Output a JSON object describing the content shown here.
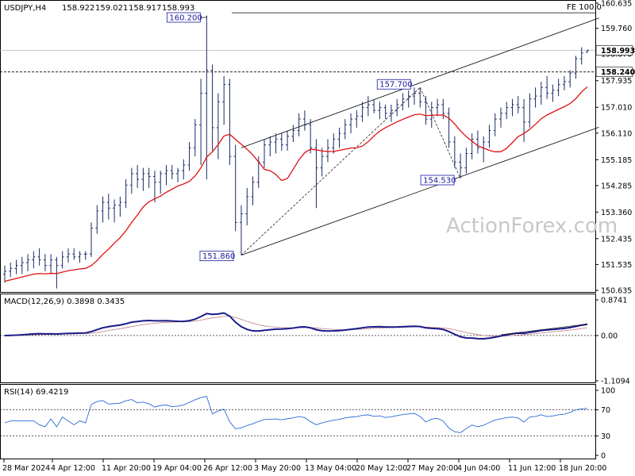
{
  "chart_data": {
    "type": "line",
    "symbol": "USDJPY,H4",
    "ohlc": {
      "open": "158.922",
      "high": "159.021",
      "low": "158.917",
      "close": "158.993"
    },
    "watermark": "ActionForex.com",
    "price_axis": {
      "ticks": [
        "160.635",
        "159.760",
        "158.870",
        "157.935",
        "157.010",
        "156.110",
        "155.185",
        "154.285",
        "153.360",
        "152.435",
        "151.535",
        "150.635"
      ],
      "ylim": [
        150.635,
        160.635
      ]
    },
    "x_labels": [
      "28 Mar 2024",
      "4 Apr 12:00",
      "11 Apr 20:00",
      "19 Apr 04:00",
      "26 Apr 12:00",
      "3 May 20:00",
      "13 May 04:00",
      "20 May 12:00",
      "27 May 20:00",
      "4 Jun 04:00",
      "11 Jun 12:00",
      "18 Jun 20:00"
    ],
    "price_callouts": [
      {
        "label": "160.200",
        "bar": 35,
        "price": 160.2
      },
      {
        "label": "151.860",
        "bar": 41,
        "price": 151.86
      },
      {
        "label": "157.700",
        "bar": 72,
        "price": 157.7
      },
      {
        "label": "154.530",
        "bar": 79,
        "price": 154.53
      }
    ],
    "price_tags": [
      {
        "label": "158.993",
        "price": 158.993
      },
      {
        "label": "158.240",
        "price": 158.24
      }
    ],
    "fe_label": "FE 100.0",
    "fe_price": 160.3,
    "horizontal_level": 158.24,
    "channel": {
      "lower": [
        {
          "bar": 41,
          "price": 151.86
        },
        {
          "bar": 100,
          "price": 156.1
        }
      ],
      "upper": [
        {
          "bar": 41,
          "price": 155.6
        },
        {
          "bar": 100,
          "price": 159.9
        }
      ]
    },
    "candles": [
      {
        "o": 151.2,
        "h": 151.5,
        "l": 150.9,
        "c": 151.3
      },
      {
        "o": 151.3,
        "h": 151.6,
        "l": 151.1,
        "c": 151.4
      },
      {
        "o": 151.4,
        "h": 151.7,
        "l": 151.2,
        "c": 151.5
      },
      {
        "o": 151.5,
        "h": 151.8,
        "l": 151.2,
        "c": 151.6
      },
      {
        "o": 151.6,
        "h": 151.9,
        "l": 151.3,
        "c": 151.7
      },
      {
        "o": 151.7,
        "h": 152.0,
        "l": 151.4,
        "c": 151.8
      },
      {
        "o": 151.8,
        "h": 152.1,
        "l": 151.5,
        "c": 151.7
      },
      {
        "o": 151.7,
        "h": 151.9,
        "l": 151.3,
        "c": 151.5
      },
      {
        "o": 151.5,
        "h": 151.9,
        "l": 151.2,
        "c": 151.7
      },
      {
        "o": 151.7,
        "h": 151.8,
        "l": 150.7,
        "c": 151.5
      },
      {
        "o": 151.5,
        "h": 152.0,
        "l": 151.4,
        "c": 151.8
      },
      {
        "o": 151.8,
        "h": 152.1,
        "l": 151.6,
        "c": 151.9
      },
      {
        "o": 151.9,
        "h": 152.1,
        "l": 151.7,
        "c": 151.8
      },
      {
        "o": 151.8,
        "h": 152.0,
        "l": 151.6,
        "c": 151.9
      },
      {
        "o": 151.9,
        "h": 152.0,
        "l": 151.7,
        "c": 151.9
      },
      {
        "o": 151.9,
        "h": 153.0,
        "l": 151.8,
        "c": 152.8
      },
      {
        "o": 152.8,
        "h": 153.6,
        "l": 152.6,
        "c": 153.4
      },
      {
        "o": 153.4,
        "h": 153.9,
        "l": 153.0,
        "c": 153.7
      },
      {
        "o": 153.7,
        "h": 154.0,
        "l": 153.1,
        "c": 153.5
      },
      {
        "o": 153.5,
        "h": 153.8,
        "l": 153.0,
        "c": 153.6
      },
      {
        "o": 153.6,
        "h": 153.9,
        "l": 153.2,
        "c": 153.7
      },
      {
        "o": 153.7,
        "h": 154.5,
        "l": 153.5,
        "c": 154.3
      },
      {
        "o": 154.3,
        "h": 154.9,
        "l": 154.0,
        "c": 154.7
      },
      {
        "o": 154.7,
        "h": 155.0,
        "l": 154.2,
        "c": 154.5
      },
      {
        "o": 154.5,
        "h": 154.9,
        "l": 154.1,
        "c": 154.7
      },
      {
        "o": 154.7,
        "h": 154.9,
        "l": 154.2,
        "c": 154.6
      },
      {
        "o": 154.6,
        "h": 154.8,
        "l": 153.7,
        "c": 154.4
      },
      {
        "o": 154.4,
        "h": 154.8,
        "l": 154.0,
        "c": 154.7
      },
      {
        "o": 154.7,
        "h": 155.0,
        "l": 154.3,
        "c": 154.8
      },
      {
        "o": 154.8,
        "h": 155.0,
        "l": 154.5,
        "c": 154.7
      },
      {
        "o": 154.7,
        "h": 154.9,
        "l": 154.4,
        "c": 154.8
      },
      {
        "o": 154.8,
        "h": 155.2,
        "l": 154.5,
        "c": 155.0
      },
      {
        "o": 155.0,
        "h": 155.8,
        "l": 154.8,
        "c": 155.6
      },
      {
        "o": 155.6,
        "h": 156.6,
        "l": 155.3,
        "c": 156.4
      },
      {
        "o": 156.4,
        "h": 158.0,
        "l": 155.0,
        "c": 157.5
      },
      {
        "o": 157.5,
        "h": 160.2,
        "l": 154.5,
        "c": 158.3
      },
      {
        "o": 158.3,
        "h": 158.5,
        "l": 155.5,
        "c": 156.3
      },
      {
        "o": 156.3,
        "h": 157.5,
        "l": 155.2,
        "c": 157.2
      },
      {
        "o": 157.2,
        "h": 158.1,
        "l": 156.4,
        "c": 157.8
      },
      {
        "o": 157.8,
        "h": 158.0,
        "l": 155.0,
        "c": 155.3
      },
      {
        "o": 155.3,
        "h": 155.7,
        "l": 152.7,
        "c": 153.0
      },
      {
        "o": 153.0,
        "h": 153.6,
        "l": 151.86,
        "c": 153.3
      },
      {
        "o": 153.3,
        "h": 154.2,
        "l": 152.9,
        "c": 153.9
      },
      {
        "o": 153.9,
        "h": 154.6,
        "l": 153.6,
        "c": 154.4
      },
      {
        "o": 154.4,
        "h": 155.3,
        "l": 154.2,
        "c": 155.1
      },
      {
        "o": 155.1,
        "h": 155.9,
        "l": 154.9,
        "c": 155.7
      },
      {
        "o": 155.7,
        "h": 156.0,
        "l": 155.3,
        "c": 155.8
      },
      {
        "o": 155.8,
        "h": 156.1,
        "l": 155.4,
        "c": 155.9
      },
      {
        "o": 155.9,
        "h": 156.1,
        "l": 155.5,
        "c": 155.7
      },
      {
        "o": 155.7,
        "h": 156.2,
        "l": 155.5,
        "c": 156.0
      },
      {
        "o": 156.0,
        "h": 156.4,
        "l": 155.8,
        "c": 156.2
      },
      {
        "o": 156.2,
        "h": 156.8,
        "l": 156.0,
        "c": 156.6
      },
      {
        "o": 156.6,
        "h": 156.9,
        "l": 156.2,
        "c": 156.4
      },
      {
        "o": 156.4,
        "h": 156.6,
        "l": 155.4,
        "c": 155.6
      },
      {
        "o": 155.6,
        "h": 155.9,
        "l": 153.5,
        "c": 154.9
      },
      {
        "o": 154.9,
        "h": 155.6,
        "l": 154.6,
        "c": 155.3
      },
      {
        "o": 155.3,
        "h": 155.9,
        "l": 155.1,
        "c": 155.6
      },
      {
        "o": 155.6,
        "h": 156.1,
        "l": 155.4,
        "c": 155.9
      },
      {
        "o": 155.9,
        "h": 156.3,
        "l": 155.6,
        "c": 156.1
      },
      {
        "o": 156.1,
        "h": 156.6,
        "l": 155.9,
        "c": 156.4
      },
      {
        "o": 156.4,
        "h": 156.8,
        "l": 156.1,
        "c": 156.6
      },
      {
        "o": 156.6,
        "h": 156.9,
        "l": 156.3,
        "c": 156.7
      },
      {
        "o": 156.7,
        "h": 157.2,
        "l": 156.5,
        "c": 157.0
      },
      {
        "o": 157.0,
        "h": 157.4,
        "l": 156.7,
        "c": 157.1
      },
      {
        "o": 157.1,
        "h": 157.3,
        "l": 156.8,
        "c": 156.9
      },
      {
        "o": 156.9,
        "h": 157.2,
        "l": 156.6,
        "c": 157.0
      },
      {
        "o": 157.0,
        "h": 157.1,
        "l": 156.6,
        "c": 156.8
      },
      {
        "o": 156.8,
        "h": 157.1,
        "l": 156.5,
        "c": 156.9
      },
      {
        "o": 156.9,
        "h": 157.3,
        "l": 156.7,
        "c": 157.1
      },
      {
        "o": 157.1,
        "h": 157.5,
        "l": 156.9,
        "c": 157.3
      },
      {
        "o": 157.3,
        "h": 157.6,
        "l": 157.0,
        "c": 157.4
      },
      {
        "o": 157.4,
        "h": 157.7,
        "l": 157.1,
        "c": 157.5
      },
      {
        "o": 157.5,
        "h": 157.7,
        "l": 157.0,
        "c": 157.2
      },
      {
        "o": 157.2,
        "h": 157.4,
        "l": 156.4,
        "c": 156.6
      },
      {
        "o": 156.6,
        "h": 157.2,
        "l": 156.3,
        "c": 157.0
      },
      {
        "o": 157.0,
        "h": 157.3,
        "l": 156.7,
        "c": 157.1
      },
      {
        "o": 157.1,
        "h": 157.3,
        "l": 156.6,
        "c": 156.8
      },
      {
        "o": 156.8,
        "h": 157.0,
        "l": 155.6,
        "c": 155.8
      },
      {
        "o": 155.8,
        "h": 156.0,
        "l": 154.9,
        "c": 155.1
      },
      {
        "o": 155.1,
        "h": 155.4,
        "l": 154.53,
        "c": 154.9
      },
      {
        "o": 154.9,
        "h": 155.6,
        "l": 154.7,
        "c": 155.4
      },
      {
        "o": 155.4,
        "h": 156.1,
        "l": 155.2,
        "c": 155.9
      },
      {
        "o": 155.9,
        "h": 156.2,
        "l": 155.4,
        "c": 155.6
      },
      {
        "o": 155.6,
        "h": 156.0,
        "l": 155.1,
        "c": 155.8
      },
      {
        "o": 155.8,
        "h": 156.4,
        "l": 155.6,
        "c": 156.2
      },
      {
        "o": 156.2,
        "h": 156.8,
        "l": 156.0,
        "c": 156.6
      },
      {
        "o": 156.6,
        "h": 157.0,
        "l": 156.3,
        "c": 156.8
      },
      {
        "o": 156.8,
        "h": 157.2,
        "l": 156.6,
        "c": 157.0
      },
      {
        "o": 157.0,
        "h": 157.3,
        "l": 156.7,
        "c": 157.1
      },
      {
        "o": 157.1,
        "h": 157.4,
        "l": 156.8,
        "c": 157.0
      },
      {
        "o": 157.0,
        "h": 157.3,
        "l": 155.8,
        "c": 156.5
      },
      {
        "o": 156.5,
        "h": 157.5,
        "l": 156.3,
        "c": 157.3
      },
      {
        "o": 157.3,
        "h": 157.7,
        "l": 157.0,
        "c": 157.4
      },
      {
        "o": 157.4,
        "h": 157.9,
        "l": 157.1,
        "c": 157.7
      },
      {
        "o": 157.7,
        "h": 158.1,
        "l": 157.3,
        "c": 157.5
      },
      {
        "o": 157.5,
        "h": 157.8,
        "l": 157.2,
        "c": 157.6
      },
      {
        "o": 157.6,
        "h": 158.0,
        "l": 157.4,
        "c": 157.8
      },
      {
        "o": 157.8,
        "h": 158.1,
        "l": 157.6,
        "c": 157.9
      },
      {
        "o": 157.9,
        "h": 158.3,
        "l": 157.7,
        "c": 158.2
      },
      {
        "o": 158.2,
        "h": 158.8,
        "l": 158.0,
        "c": 158.7
      },
      {
        "o": 158.7,
        "h": 159.1,
        "l": 158.5,
        "c": 158.9
      },
      {
        "o": 158.922,
        "h": 159.021,
        "l": 158.917,
        "c": 158.993
      }
    ],
    "ma_color": "#e01010",
    "candle_color": "#1a2a6a",
    "macd": {
      "label": "MACD(12,26,9) 0.3898 0.3435",
      "ticks": [
        "0.8741",
        "0.00",
        "-1.1094"
      ],
      "ylim": [
        -1.1094,
        0.8741
      ]
    },
    "rsi": {
      "label": "RSI(14) 69.4219",
      "ticks": [
        "100",
        "70",
        "30",
        "0"
      ],
      "ylim": [
        0,
        100
      ],
      "levels": [
        70,
        30
      ]
    }
  }
}
